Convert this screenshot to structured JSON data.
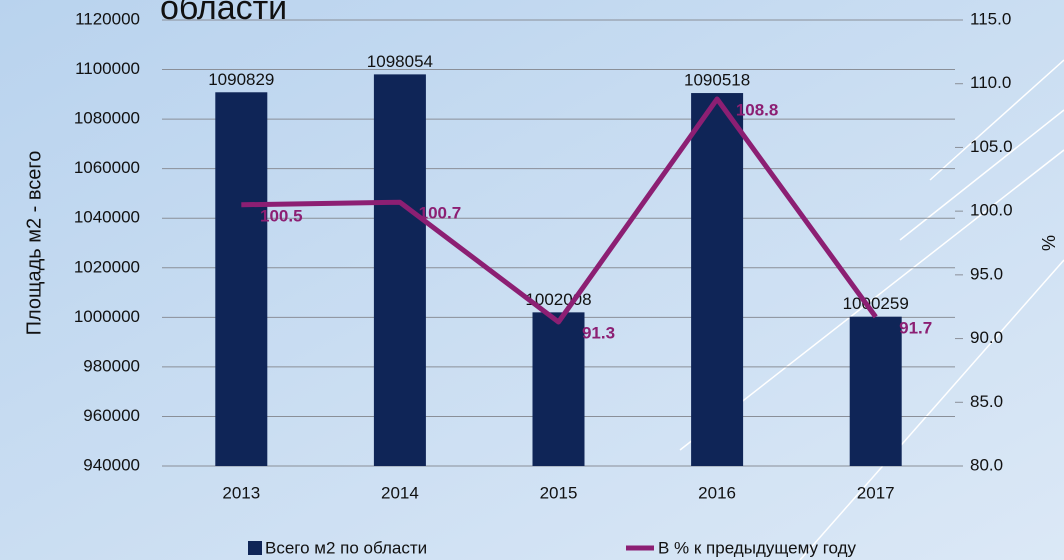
{
  "chart_data": {
    "type": "bar",
    "title": "области",
    "y_label": "Площадь  м2 - всего",
    "y2_label": "%",
    "categories": [
      "2013",
      "2014",
      "2015",
      "2016",
      "2017"
    ],
    "series": [
      {
        "name": "Всего м2 по области",
        "type": "bar",
        "color": "#0f2557",
        "values": [
          1090829,
          1098054,
          1002008,
          1090518,
          1000259
        ]
      },
      {
        "name": "В % к предыдущему году",
        "type": "line",
        "axis": "y2",
        "color": "#8c1f73",
        "values": [
          100.5,
          100.7,
          91.3,
          108.8,
          91.7
        ]
      }
    ],
    "ylim": [
      940000,
      1120000
    ],
    "yticks": [
      940000,
      960000,
      980000,
      1000000,
      1020000,
      1040000,
      1060000,
      1080000,
      1100000,
      1120000
    ],
    "y2lim": [
      80,
      115
    ],
    "y2ticks": [
      {
        "value": 80,
        "label": "80.0"
      },
      {
        "value": 85,
        "label": "85.0"
      },
      {
        "value": 90,
        "label": "90.0"
      },
      {
        "value": 95,
        "label": "95.0"
      },
      {
        "value": 100,
        "label": "100.0"
      },
      {
        "value": 105,
        "label": "105.0"
      },
      {
        "value": 110,
        "label": "110.0"
      },
      {
        "value": 115,
        "label": "115.0"
      }
    ],
    "grid": true
  }
}
